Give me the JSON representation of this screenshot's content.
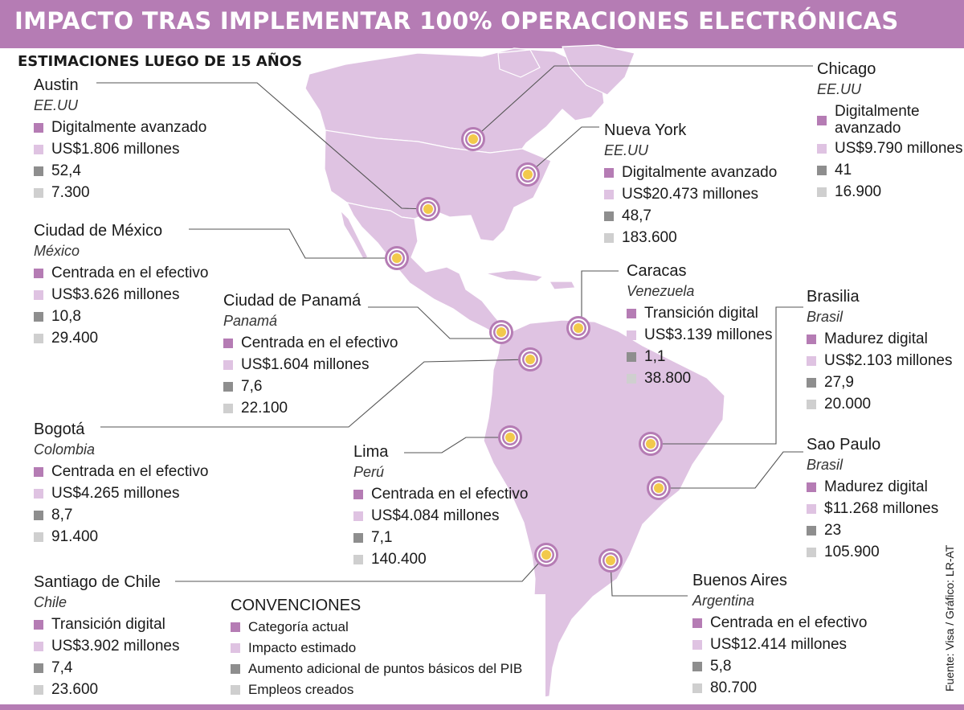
{
  "title": "IMPACTO TRAS IMPLEMENTAR 100% OPERACIONES ELECTRÓNICAS",
  "subtitle": "ESTIMACIONES LUEGO DE 15 AÑOS",
  "colors": {
    "header": "#b57cb4",
    "land": "#dfc3e2",
    "category": "#b57cb4",
    "impact": "#dfc3e2",
    "gdp": "#8e8e8e",
    "jobs": "#cfcfcf",
    "marker_ring": "#b57cb4",
    "marker_center": "#f2c94c"
  },
  "cities": [
    {
      "key": "austin",
      "city": "Austin",
      "country": "EE.UU",
      "category": "Digitalmente avanzado",
      "impact": "US$1.806 millones",
      "gdp": "52,4",
      "jobs": "7.300"
    },
    {
      "key": "chicago",
      "city": "Chicago",
      "country": "EE.UU",
      "category_l1": "Digitalmente",
      "category_l2": "avanzado",
      "impact": "US$9.790 millones",
      "gdp": "41",
      "jobs": "16.900"
    },
    {
      "key": "nuevayork",
      "city": "Nueva York",
      "country": "EE.UU",
      "category": "Digitalmente avanzado",
      "impact": "US$20.473 millones",
      "gdp": "48,7",
      "jobs": "183.600"
    },
    {
      "key": "mexico",
      "city": "Ciudad de México",
      "country": "México",
      "category": "Centrada en el efectivo",
      "impact": "US$3.626 millones",
      "gdp": "10,8",
      "jobs": "29.400"
    },
    {
      "key": "panama",
      "city": "Ciudad de Panamá",
      "country": "Panamá",
      "category": "Centrada en el efectivo",
      "impact": "US$1.604 millones",
      "gdp": "7,6",
      "jobs": "22.100"
    },
    {
      "key": "caracas",
      "city": "Caracas",
      "country": "Venezuela",
      "category": "Transición digital",
      "impact": "US$3.139 millones",
      "gdp": "1,1",
      "jobs": "38.800"
    },
    {
      "key": "brasilia",
      "city": "Brasilia",
      "country": "Brasil",
      "category": "Madurez digital",
      "impact": "US$2.103 millones",
      "gdp": "27,9",
      "jobs": "20.000"
    },
    {
      "key": "bogota",
      "city": "Bogotá",
      "country": "Colombia",
      "category": "Centrada en el efectivo",
      "impact": "US$4.265 millones",
      "gdp": "8,7",
      "jobs": "91.400"
    },
    {
      "key": "lima",
      "city": "Lima",
      "country": "Perú",
      "category": "Centrada en el efectivo",
      "impact": "US$4.084 millones",
      "gdp": "7,1",
      "jobs": "140.400"
    },
    {
      "key": "saopaulo",
      "city": "Sao Paulo",
      "country": "Brasil",
      "category": "Madurez digital",
      "impact": "$11.268 millones",
      "gdp": "23",
      "jobs": "105.900"
    },
    {
      "key": "santiago",
      "city": "Santiago de Chile",
      "country": "Chile",
      "category": "Transición digital",
      "impact": "US$3.902 millones",
      "gdp": "7,4",
      "jobs": "23.600"
    },
    {
      "key": "buenosaires",
      "city": "Buenos Aires",
      "country": "Argentina",
      "category": "Centrada en el efectivo",
      "impact": "US$12.414 millones",
      "gdp": "5,8",
      "jobs": "80.700"
    }
  ],
  "legend": {
    "title": "CONVENCIONES",
    "category": "Categoría actual",
    "impact": "Impacto estimado",
    "gdp": "Aumento adicional de puntos básicos del PIB",
    "jobs": "Empleos creados"
  },
  "source": "Fuente: Visa / Gráfico: LR-AT"
}
